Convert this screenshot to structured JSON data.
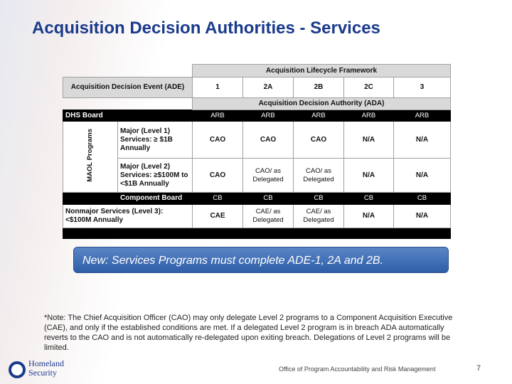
{
  "title": "Acquisition Decision Authorities - Services",
  "table": {
    "framework_header": "Acquisition Lifecycle Framework",
    "ade_header": "Acquisition Decision Event (ADE)",
    "ade_columns": [
      "1",
      "2A",
      "2B",
      "2C",
      "3"
    ],
    "ada_header": "Acquisition Decision Authority (ADA)",
    "group_label": "MAOL Programs",
    "rows": [
      {
        "label": "DHS Board",
        "cells": [
          "ARB",
          "ARB",
          "ARB",
          "ARB",
          "ARB"
        ]
      },
      {
        "label": "Major (Level 1) Services: ≥ $1B Annually",
        "cells": [
          "CAO",
          "CAO",
          "CAO",
          "N/A",
          "N/A"
        ]
      },
      {
        "label": "Major (Level 2) Services: ≥$100M to <$1B Annually",
        "cells": [
          "CAO",
          "CAO/ as Delegated",
          "CAO/ as Delegated",
          "N/A",
          "N/A"
        ]
      },
      {
        "label": "Component Board",
        "cells": [
          "CB",
          "CB",
          "CB",
          "CB",
          "CB"
        ]
      },
      {
        "label": "Nonmajor Services (Level 3): <$100M Annually",
        "cells": [
          "CAE",
          "CAE/ as Delegated",
          "CAE/ as Delegated",
          "N/A",
          "N/A"
        ]
      }
    ]
  },
  "callout": "New: Services Programs must complete ADE-1, 2A and 2B.",
  "note": "*Note: The Chief Acquisition Officer (CAO) may only delegate Level 2 programs to a Component Acquisition Executive (CAE), and only if the established conditions are met. If a delegated Level 2 program is in breach ADA automatically reverts to the CAO and is not automatically re-delegated upon exiting breach. Delegations of Level 2 programs will be limited.",
  "logo": "Homeland Security",
  "footer": "Office of Program Accountability and Risk Management",
  "page_number": "7"
}
